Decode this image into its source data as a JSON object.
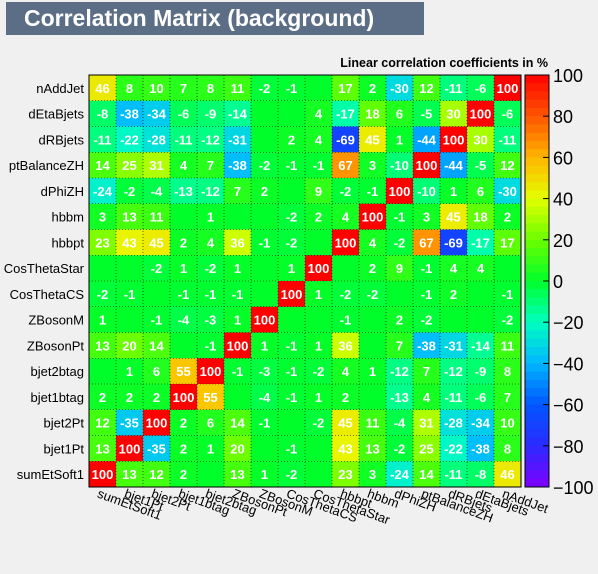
{
  "title": "Correlation Matrix (background)",
  "chart_data": {
    "type": "heatmap",
    "subtitle": "Linear correlation coefficients in %",
    "variables": [
      "sumEtSoft1",
      "bjet1Pt",
      "bjet2Pt",
      "bjet1btag",
      "bjet2btag",
      "ZBosonPt",
      "ZBosonM",
      "CosThetaCS",
      "CosThetaStar",
      "hbbpt",
      "hbbm",
      "dPhiZH",
      "ptBalanceZH",
      "dRBjets",
      "dEtaBjets",
      "nAddJet"
    ],
    "matrix": [
      [
        100,
        13,
        12,
        2,
        null,
        13,
        1,
        -2,
        null,
        23,
        3,
        -24,
        14,
        -11,
        -8,
        46
      ],
      [
        13,
        100,
        -35,
        2,
        1,
        20,
        null,
        -1,
        null,
        43,
        13,
        -2,
        25,
        -22,
        -38,
        8
      ],
      [
        12,
        -35,
        100,
        2,
        6,
        14,
        -1,
        null,
        -2,
        45,
        11,
        -4,
        31,
        -28,
        -34,
        10
      ],
      [
        2,
        2,
        2,
        100,
        55,
        null,
        -4,
        -1,
        1,
        2,
        null,
        -13,
        4,
        -11,
        -6,
        7
      ],
      [
        null,
        1,
        6,
        55,
        100,
        -1,
        -3,
        -1,
        -2,
        4,
        1,
        -12,
        7,
        -12,
        -9,
        8
      ],
      [
        13,
        20,
        14,
        null,
        -1,
        100,
        1,
        -1,
        1,
        36,
        null,
        7,
        -38,
        -31,
        -14,
        11
      ],
      [
        1,
        null,
        -1,
        -4,
        -3,
        1,
        100,
        null,
        null,
        -1,
        null,
        2,
        -2,
        null,
        null,
        -2
      ],
      [
        -2,
        -1,
        null,
        -1,
        -1,
        -1,
        null,
        100,
        1,
        -2,
        -2,
        null,
        -1,
        2,
        null,
        -1
      ],
      [
        null,
        null,
        -2,
        1,
        -2,
        1,
        null,
        1,
        100,
        null,
        2,
        9,
        -1,
        4,
        4,
        null
      ],
      [
        23,
        43,
        45,
        2,
        4,
        36,
        -1,
        -2,
        null,
        100,
        4,
        -2,
        67,
        -69,
        -17,
        17
      ],
      [
        3,
        13,
        11,
        null,
        1,
        null,
        null,
        -2,
        2,
        4,
        100,
        -1,
        3,
        45,
        18,
        2
      ],
      [
        -24,
        -2,
        -4,
        -13,
        -12,
        7,
        2,
        null,
        9,
        -2,
        -1,
        100,
        -10,
        1,
        6,
        -30
      ],
      [
        14,
        25,
        31,
        4,
        7,
        -38,
        -2,
        -1,
        -1,
        67,
        3,
        -10,
        100,
        -44,
        -5,
        12
      ],
      [
        -11,
        -22,
        -28,
        -11,
        -12,
        -31,
        null,
        2,
        4,
        -69,
        45,
        1,
        -44,
        100,
        30,
        -11
      ],
      [
        -8,
        -38,
        -34,
        -6,
        -9,
        -14,
        null,
        null,
        4,
        -17,
        18,
        6,
        -5,
        30,
        100,
        -6
      ],
      [
        46,
        8,
        10,
        7,
        8,
        11,
        -2,
        -1,
        null,
        17,
        2,
        -30,
        12,
        -11,
        -6,
        100
      ]
    ],
    "zlim": [
      -100,
      100
    ],
    "colorbar_ticks": [
      -100,
      -80,
      -60,
      -40,
      -20,
      0,
      20,
      40,
      60,
      80,
      100
    ],
    "colors": {
      "neg100": "#7f00ff",
      "neg80": "#2a2aff",
      "neg60": "#0057ff",
      "neg40": "#00b7ff",
      "neg20": "#00ffbf",
      "zero": "#00ff2a",
      "pos20": "#6bff00",
      "pos40": "#e4ff00",
      "pos60": "#ffb400",
      "pos80": "#ff5500",
      "pos100": "#ff0000"
    }
  }
}
